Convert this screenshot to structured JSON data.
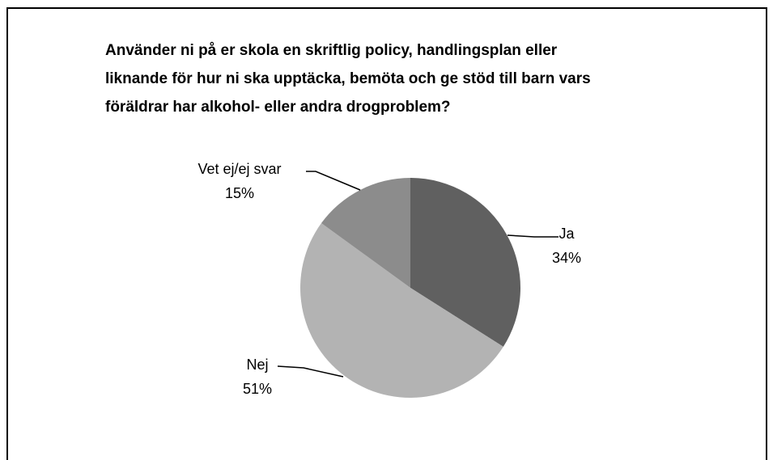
{
  "chart_data": {
    "type": "pie",
    "title": [
      "Använder ni på er skola en skriftlig policy, handlingsplan  eller",
      "liknande för hur ni ska upptäcka, bemöta och ge stöd till barn vars",
      "föräldrar har alkohol- eller andra drogproblem?"
    ],
    "categories": [
      "Ja",
      "Nej",
      "Vet ej/ej svar"
    ],
    "values": [
      34,
      51,
      15
    ],
    "value_labels": [
      "34%",
      "51%",
      "15%"
    ],
    "colors": [
      "#606060",
      "#b3b3b3",
      "#8c8c8c"
    ]
  }
}
